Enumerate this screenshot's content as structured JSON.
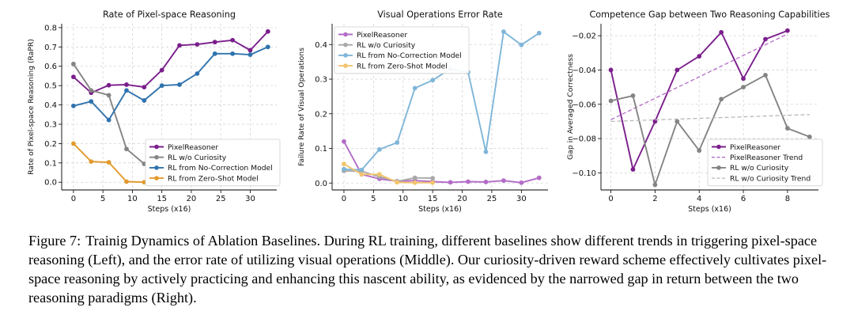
{
  "colors": {
    "purple": "#7b1f8c",
    "gray": "#848484",
    "blue": "#2f73ae",
    "orange": "#e29a2e",
    "lightpurple": "#b36cc7",
    "lightgray": "#a9a9a9",
    "lightblue": "#7fb6d9",
    "lightorange": "#f2c46e",
    "trendPurple": "#b36cc7",
    "trendGray": "#b8b8b8"
  },
  "chart_data": [
    {
      "type": "line",
      "title": "Rate of Pixel-space Reasoning",
      "xlabel": "Steps (x16)",
      "ylabel": "Rate of Pixel-space Reasoning (RaPR)",
      "xlim": [
        -2,
        34.5
      ],
      "ylim": [
        -0.04,
        0.82
      ],
      "xticks": [
        0,
        5,
        10,
        15,
        20,
        25,
        30
      ],
      "yticks": [
        0.0,
        0.1,
        0.2,
        0.3,
        0.4,
        0.5,
        0.6,
        0.7,
        0.8
      ],
      "ytick_labels": [
        "0.0",
        "0.1",
        "0.2",
        "0.3",
        "0.4",
        "0.5",
        "0.6",
        "0.7",
        "0.8"
      ],
      "grid": true,
      "legend": "bottom-right",
      "series": [
        {
          "name": "PixelReasoner",
          "color": "purple",
          "marker": true,
          "x": [
            0,
            3,
            6,
            9,
            12,
            15,
            18,
            21,
            24,
            27,
            30,
            33
          ],
          "y": [
            0.545,
            0.463,
            0.502,
            0.505,
            0.492,
            0.58,
            0.708,
            0.713,
            0.725,
            0.735,
            0.683,
            0.78
          ]
        },
        {
          "name": "RL w/o Curiosity",
          "color": "gray",
          "marker": true,
          "x": [
            0,
            3,
            6,
            9,
            12
          ],
          "y": [
            0.612,
            0.475,
            0.45,
            0.172,
            0.095
          ]
        },
        {
          "name": "RL from No-Correction Model",
          "color": "blue",
          "marker": true,
          "x": [
            0,
            3,
            6,
            9,
            12,
            15,
            18,
            21,
            24,
            27,
            30,
            33
          ],
          "y": [
            0.395,
            0.418,
            0.322,
            0.475,
            0.423,
            0.5,
            0.505,
            0.562,
            0.665,
            0.665,
            0.66,
            0.7
          ]
        },
        {
          "name": "RL from Zero-Shot Model",
          "color": "orange",
          "marker": true,
          "x": [
            0,
            3,
            6,
            9,
            12
          ],
          "y": [
            0.2,
            0.107,
            0.103,
            0.003,
            0.0
          ]
        }
      ]
    },
    {
      "type": "line",
      "title": "Visual Operations Error Rate",
      "xlabel": "Steps (x16)",
      "ylabel": "Failure Rate of Visual Operations",
      "xlim": [
        -2,
        34.5
      ],
      "ylim": [
        -0.02,
        0.46
      ],
      "xticks": [
        0,
        5,
        10,
        15,
        20,
        25,
        30
      ],
      "yticks": [
        0.0,
        0.1,
        0.2,
        0.3,
        0.4
      ],
      "ytick_labels": [
        "0.0",
        "0.1",
        "0.2",
        "0.3",
        "0.4"
      ],
      "grid": true,
      "legend": "top-left",
      "series": [
        {
          "name": "PixelReasoner",
          "color": "lightpurple",
          "marker": true,
          "x": [
            0,
            3,
            6,
            9,
            12,
            15,
            18,
            21,
            24,
            27,
            30,
            33
          ],
          "y": [
            0.12,
            0.025,
            0.012,
            0.005,
            0.007,
            0.004,
            0.002,
            0.004,
            0.003,
            0.007,
            0.001,
            0.015
          ]
        },
        {
          "name": "RL w/o Curiosity",
          "color": "lightgray",
          "marker": true,
          "x": [
            0,
            3,
            6,
            9,
            12,
            15
          ],
          "y": [
            0.035,
            0.034,
            0.018,
            0.005,
            0.015,
            0.014
          ]
        },
        {
          "name": "RL from No-Correction Model",
          "color": "lightblue",
          "marker": true,
          "x": [
            0,
            3,
            6,
            9,
            12,
            15,
            18,
            21,
            24,
            27,
            30,
            33
          ],
          "y": [
            0.04,
            0.038,
            0.097,
            0.117,
            0.274,
            0.297,
            0.33,
            0.32,
            0.09,
            0.437,
            0.399,
            0.433
          ]
        },
        {
          "name": "RL from Zero-Shot Model",
          "color": "lightorange",
          "marker": true,
          "x": [
            0,
            3,
            6,
            9,
            12,
            15
          ],
          "y": [
            0.055,
            0.025,
            0.025,
            0.002,
            0.001,
            0.001
          ]
        }
      ]
    },
    {
      "type": "line",
      "title": "Competence Gap between Two Reasoning Capabilities",
      "xlabel": "Steps (x16)",
      "ylabel": "Gap in Averaged Correctness",
      "xlim": [
        -0.45,
        9.4
      ],
      "ylim": [
        -0.11,
        -0.013
      ],
      "xticks": [
        0,
        2,
        4,
        6,
        8
      ],
      "yticks": [
        -0.1,
        -0.08,
        -0.06,
        -0.04,
        -0.02
      ],
      "ytick_labels": [
        "−0.10",
        "−0.08",
        "−0.06",
        "−0.04",
        "−0.02"
      ],
      "grid": true,
      "legend": "bottom-right",
      "series": [
        {
          "name": "PixelReasoner",
          "color": "purple",
          "marker": true,
          "x": [
            0,
            1,
            2,
            3,
            4,
            5,
            6,
            7,
            8
          ],
          "y": [
            -0.04,
            -0.098,
            -0.07,
            -0.04,
            -0.032,
            -0.018,
            -0.045,
            -0.022,
            -0.017
          ]
        },
        {
          "name": "PixelReasoner Trend",
          "color": "trendPurple",
          "marker": false,
          "dashed": true,
          "x": [
            0,
            8
          ],
          "y": [
            -0.069,
            -0.019
          ]
        },
        {
          "name": "RL w/o Curiosity",
          "color": "gray",
          "marker": true,
          "x": [
            0,
            1,
            2,
            3,
            4,
            5,
            6,
            7,
            8,
            9
          ],
          "y": [
            -0.058,
            -0.055,
            -0.107,
            -0.07,
            -0.087,
            -0.057,
            -0.05,
            -0.043,
            -0.074,
            -0.079
          ]
        },
        {
          "name": "RL w/o Curiosity Trend",
          "color": "trendGray",
          "marker": false,
          "dashed": true,
          "x": [
            0,
            9
          ],
          "y": [
            -0.07,
            -0.066
          ]
        }
      ]
    }
  ],
  "caption": {
    "label": "Figure 7:",
    "text": "Trainig Dynamics of Ablation Baselines. During RL training, different baselines show different trends in triggering pixel-space reasoning (Left), and the error rate of utilizing visual operations (Middle). Our curiosity-driven reward scheme effectively cultivates pixel-space reasoning by actively practicing and enhancing this nascent ability, as evidenced by the narrowed gap in return between the two reasoning paradigms (Right)."
  }
}
